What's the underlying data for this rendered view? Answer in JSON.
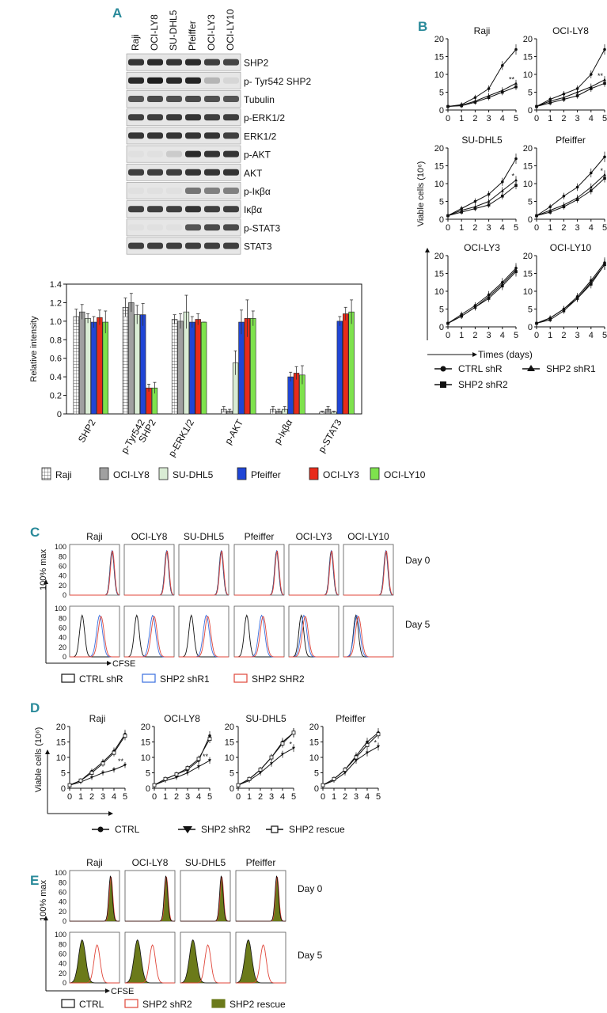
{
  "panels": {
    "A": "A",
    "B": "B",
    "C": "C",
    "D": "D",
    "E": "E"
  },
  "western": {
    "lanes": [
      "Raji",
      "OCI-LY8",
      "SU-DHL5",
      "Pfeiffer",
      "OCI-LY3",
      "OCI-LY10"
    ],
    "rows": [
      {
        "label": "SHP2",
        "intensity": [
          0.85,
          0.9,
          0.85,
          0.9,
          0.8,
          0.78
        ]
      },
      {
        "label": "p- Tyr542 SHP2",
        "intensity": [
          0.9,
          0.95,
          0.9,
          0.92,
          0.25,
          0.1
        ]
      },
      {
        "label": "Tubulin",
        "intensity": [
          0.7,
          0.75,
          0.72,
          0.75,
          0.72,
          0.7
        ]
      },
      {
        "label": "p-ERK1/2",
        "intensity": [
          0.8,
          0.8,
          0.82,
          0.85,
          0.8,
          0.8
        ]
      },
      {
        "label": "ERK1/2",
        "intensity": [
          0.85,
          0.85,
          0.85,
          0.85,
          0.85,
          0.8
        ]
      },
      {
        "label": "p-AKT",
        "intensity": [
          0.05,
          0.05,
          0.15,
          0.9,
          0.85,
          0.85
        ]
      },
      {
        "label": "AKT",
        "intensity": [
          0.8,
          0.8,
          0.8,
          0.85,
          0.85,
          0.85
        ]
      },
      {
        "label": "p-Iκβα",
        "intensity": [
          0.05,
          0.05,
          0.05,
          0.55,
          0.5,
          0.5
        ]
      },
      {
        "label": "Iκβα",
        "intensity": [
          0.8,
          0.8,
          0.8,
          0.85,
          0.8,
          0.8
        ]
      },
      {
        "label": "p-STAT3",
        "intensity": [
          0.05,
          0.05,
          0.05,
          0.7,
          0.75,
          0.75
        ]
      },
      {
        "label": "STAT3",
        "intensity": [
          0.8,
          0.8,
          0.8,
          0.8,
          0.8,
          0.8
        ]
      }
    ]
  },
  "chart_data": [
    {
      "id": "A-bar",
      "type": "bar",
      "ylabel": "Relative intensity",
      "ylim": [
        0,
        1.4
      ],
      "yticks": [
        "0",
        "0.2",
        "0.4",
        "0.6",
        "0.8",
        "1.0",
        "1.2",
        "1.4"
      ],
      "categories": [
        "SHP2",
        "p-Tyr542\nSHP2",
        "p-ERK1/2",
        "p-AKT",
        "p-Iκβα",
        "p-STAT3"
      ],
      "series": [
        {
          "name": "Raji",
          "color": "#ffffff",
          "pattern": "grid",
          "values": [
            1.05,
            1.15,
            1.02,
            0.05,
            0.05,
            0.02
          ],
          "errors": [
            0.08,
            0.1,
            0.05,
            0.03,
            0.03,
            0.01
          ]
        },
        {
          "name": "OCI-LY8",
          "color": "#a0a0a0",
          "values": [
            1.1,
            1.2,
            1.0,
            0.03,
            0.03,
            0.05
          ],
          "errors": [
            0.08,
            0.1,
            0.08,
            0.02,
            0.02,
            0.03
          ]
        },
        {
          "name": "SU-DHL5",
          "color": "#d9ecd4",
          "values": [
            1.03,
            1.07,
            1.1,
            0.55,
            0.05,
            0.02
          ],
          "errors": [
            0.05,
            0.1,
            0.18,
            0.13,
            0.03,
            0.01
          ]
        },
        {
          "name": "Pfeiffer",
          "color": "#1f45d6",
          "values": [
            0.99,
            1.07,
            0.99,
            0.99,
            0.4,
            1.0
          ],
          "errors": [
            0.06,
            0.12,
            0.06,
            0.13,
            0.05,
            0.05
          ]
        },
        {
          "name": "OCI-LY3",
          "color": "#e82b1a",
          "values": [
            1.04,
            0.28,
            1.02,
            1.03,
            0.44,
            1.08
          ],
          "errors": [
            0.08,
            0.04,
            0.06,
            0.2,
            0.07,
            0.07
          ]
        },
        {
          "name": "OCI-LY10",
          "color": "#7ee24d",
          "values": [
            0.99,
            0.28,
            0.99,
            1.03,
            0.42,
            1.1
          ],
          "errors": [
            0.12,
            0.06,
            0.0,
            0.08,
            0.1,
            0.13
          ]
        }
      ]
    },
    {
      "id": "B-growth",
      "type": "line",
      "ylabel": "Viable cells (10⁶)",
      "xlabel": "Times (days)",
      "x": [
        0,
        1,
        2,
        3,
        4,
        5
      ],
      "ylim": [
        0,
        20
      ],
      "yticks": [
        "0",
        "5",
        "10",
        "15",
        "20"
      ],
      "xticks": [
        "0",
        "1",
        "2",
        "3",
        "4",
        "5"
      ],
      "subplots": [
        {
          "title": "Raji",
          "series": [
            [
              1,
              1.5,
              3.5,
              6,
              12.5,
              17
            ],
            [
              1,
              1.3,
              2.5,
              4,
              5.5,
              7.5
            ],
            [
              1,
              1.2,
              2.2,
              3.5,
              5,
              6.5
            ]
          ],
          "annot": "**"
        },
        {
          "title": "OCI-LY8",
          "series": [
            [
              1,
              3,
              4.5,
              6,
              10,
              17
            ],
            [
              1,
              2.5,
              3.5,
              5,
              6.5,
              8.5
            ],
            [
              1,
              2,
              3,
              4,
              6,
              7.5
            ]
          ],
          "annot": "**"
        },
        {
          "title": "SU-DHL5",
          "series": [
            [
              1,
              3,
              5,
              7,
              10.5,
              17
            ],
            [
              1,
              2.5,
              3.5,
              5,
              8,
              11
            ],
            [
              1,
              2,
              3,
              4,
              6.5,
              9.5
            ]
          ],
          "annot": "*"
        },
        {
          "title": "Pfeiffer",
          "series": [
            [
              1,
              3.5,
              6.5,
              9,
              13,
              17.5
            ],
            [
              1,
              2.5,
              4,
              6,
              9,
              12.5
            ],
            [
              1,
              2,
              3.5,
              5.5,
              8,
              11.5
            ]
          ],
          "annot": "*"
        },
        {
          "title": "OCI-LY3",
          "series": [
            [
              1,
              3.5,
              6,
              9,
              12.5,
              16.5
            ],
            [
              1,
              3,
              5.5,
              8.5,
              12,
              16
            ],
            [
              1,
              3,
              5.5,
              8,
              11.5,
              15.5
            ]
          ],
          "annot": ""
        },
        {
          "title": "OCI-LY10",
          "series": [
            [
              1,
              2.5,
              5,
              8.5,
              13,
              18
            ],
            [
              1,
              2.5,
              5,
              8,
              12.5,
              17.5
            ],
            [
              1,
              2,
              4.5,
              8,
              12,
              17.5
            ]
          ],
          "annot": ""
        }
      ],
      "legend": [
        "CTRL shR",
        "SHP2 shR1",
        "SHP2 shR2"
      ]
    },
    {
      "id": "D-growth",
      "type": "line",
      "ylabel": "Viable cells (10⁶)",
      "x": [
        0,
        1,
        2,
        3,
        4,
        5
      ],
      "ylim": [
        0,
        20
      ],
      "yticks": [
        "0",
        "5",
        "10",
        "15",
        "20"
      ],
      "xticks": [
        "0",
        "1",
        "2",
        "3",
        "4",
        "5"
      ],
      "subplots": [
        {
          "title": "Raji",
          "series": [
            [
              1,
              2.5,
              5.5,
              8.5,
              12,
              17.5
            ],
            [
              1,
              2,
              3.5,
              5,
              6,
              7.5
            ],
            [
              1,
              2.5,
              5,
              8,
              11.5,
              17
            ]
          ],
          "annot": "**"
        },
        {
          "title": "OCI-LY8",
          "series": [
            [
              1,
              3,
              4.5,
              6,
              9,
              17
            ],
            [
              1,
              2.5,
              3.5,
              5,
              7,
              9
            ],
            [
              1,
              3,
              4.5,
              6.5,
              9.5,
              16
            ]
          ],
          "annot": "**"
        },
        {
          "title": "SU-DHL5",
          "series": [
            [
              1,
              3,
              6,
              10,
              15,
              18
            ],
            [
              1,
              2.5,
              5,
              8,
              11,
              13
            ],
            [
              1,
              3,
              6,
              10,
              14.5,
              18
            ]
          ],
          "annot": "*"
        },
        {
          "title": "Pfeiffer",
          "series": [
            [
              1,
              3,
              6,
              10.5,
              15,
              18
            ],
            [
              1,
              2.5,
              5,
              9,
              11.5,
              13.5
            ],
            [
              1,
              3,
              6,
              10,
              14,
              17.5
            ]
          ],
          "annot": "*"
        }
      ],
      "legend": [
        "CTRL",
        "SHP2 shR2",
        "SHP2 rescue"
      ]
    }
  ],
  "panelC": {
    "titles": [
      "Raji",
      "OCI-LY8",
      "SU-DHL5",
      "Pfeiffer",
      "OCI-LY3",
      "OCI-LY10"
    ],
    "ylabel": "100% max",
    "xlabel": "CFSE",
    "yticks": [
      "0",
      "20",
      "40",
      "60",
      "80",
      "100"
    ],
    "day0": "Day 0",
    "day5": "Day 5",
    "legend": [
      {
        "label": "CTRL shR",
        "color": "#111111"
      },
      {
        "label": "SHP2 shR1",
        "color": "#3a6fe0"
      },
      {
        "label": "SHP2 SHR2",
        "color": "#e0463a"
      }
    ],
    "day5_shift": [
      0.35,
      0.32,
      0.3,
      0.3,
      0.05,
      0.02
    ]
  },
  "panelE": {
    "titles": [
      "Raji",
      "OCI-LY8",
      "SU-DHL5",
      "Pfeiffer"
    ],
    "ylabel": "100% max",
    "xlabel": "CFSE",
    "yticks": [
      "0",
      "20",
      "40",
      "60",
      "80",
      "100"
    ],
    "day0": "Day 0",
    "day5": "Day 5",
    "legend": [
      {
        "label": "CTRL",
        "color": "#111111"
      },
      {
        "label": "SHP2 shR2",
        "color": "#e0463a"
      },
      {
        "label": "SHP2 rescue",
        "color": "#6b7a1a"
      }
    ]
  }
}
